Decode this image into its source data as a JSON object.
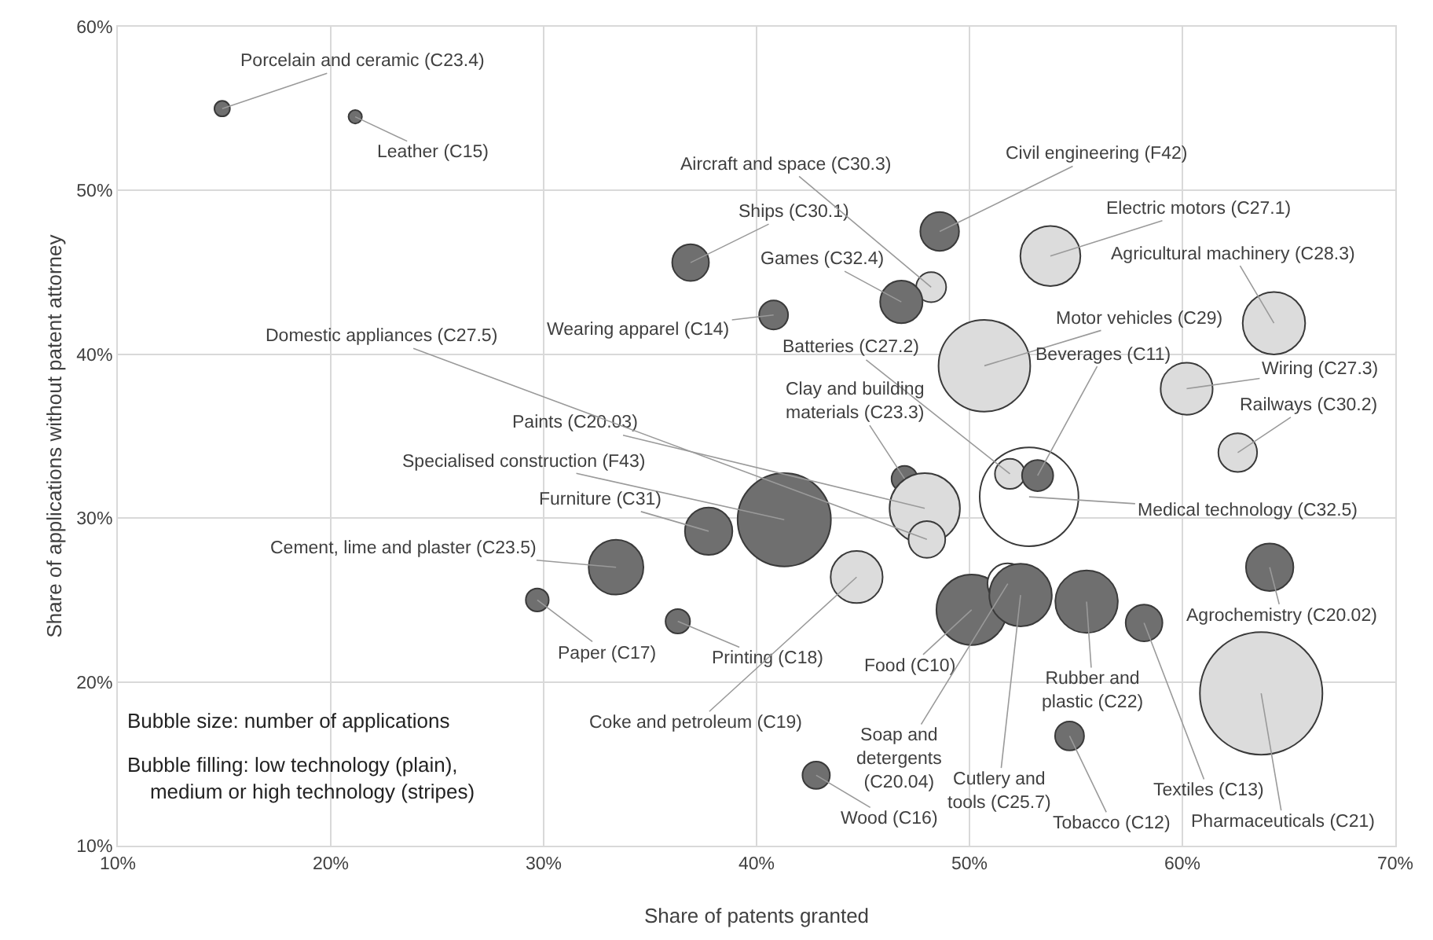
{
  "chart_data": {
    "type": "bubble",
    "xlabel": "Share of patents granted",
    "ylabel": "Share of applications without patent attorney",
    "x": [
      14.9,
      21.15,
      36.9,
      40.8,
      48.2,
      48.6,
      46.8,
      53.8,
      64.3,
      50.7,
      60.2,
      62.6,
      52.8,
      51.9,
      53.2,
      46.95,
      47.9,
      48.0,
      41.3,
      37.75,
      33.4,
      29.7,
      36.3,
      44.7,
      50.1,
      51.8,
      52.4,
      55.5,
      58.2,
      64.1,
      63.7,
      54.7,
      42.8
    ],
    "values": [
      55.0,
      54.5,
      45.6,
      42.4,
      44.1,
      47.5,
      43.2,
      46.0,
      41.9,
      39.3,
      37.9,
      34.0,
      31.3,
      32.7,
      32.6,
      32.4,
      30.6,
      28.7,
      29.9,
      29.2,
      27.0,
      25.0,
      23.7,
      26.4,
      24.4,
      26.0,
      25.3,
      24.9,
      23.6,
      27.0,
      19.3,
      16.7,
      14.3
    ],
    "sizes": [
      0.016,
      0.012,
      0.09,
      0.056,
      0.06,
      0.1,
      0.12,
      0.24,
      0.26,
      0.56,
      0.18,
      0.1,
      0.65,
      0.06,
      0.065,
      0.045,
      0.33,
      0.09,
      0.58,
      0.15,
      0.2,
      0.035,
      0.04,
      0.18,
      0.33,
      0.11,
      0.26,
      0.26,
      0.09,
      0.15,
      1,
      0.056,
      0.05
    ],
    "colors": [
      "#6f6f6f",
      "#6f6f6f",
      "#6f6f6f",
      "#6f6f6f",
      "#dcdcdc",
      "#6f6f6f",
      "#6f6f6f",
      "#dcdcdc",
      "#dcdcdc",
      "#dcdcdc",
      "#dcdcdc",
      "#dcdcdc",
      "#ffffff",
      "#dcdcdc",
      "#6f6f6f",
      "#6f6f6f",
      "#dcdcdc",
      "#dcdcdc",
      "#6f6f6f",
      "#6f6f6f",
      "#6f6f6f",
      "#6f6f6f",
      "#6f6f6f",
      "#dcdcdc",
      "#6f6f6f",
      "#ffffff",
      "#6f6f6f",
      "#6f6f6f",
      "#6f6f6f",
      "#6f6f6f",
      "#dcdcdc",
      "#6f6f6f",
      "#6f6f6f"
    ],
    "xlim": [
      10,
      70
    ],
    "xticks": [
      {
        "value": 10,
        "label": "10%"
      },
      {
        "value": 20,
        "label": "20%"
      },
      {
        "value": 30,
        "label": "30%"
      },
      {
        "value": 40,
        "label": "40%"
      },
      {
        "value": 50,
        "label": "50%"
      },
      {
        "value": 60,
        "label": "60%"
      },
      {
        "value": 70,
        "label": "70%"
      }
    ],
    "ylim": [
      10,
      60
    ],
    "yticks": [
      {
        "value": 10,
        "label": "10%"
      },
      {
        "value": 20,
        "label": "20%"
      },
      {
        "value": 30,
        "label": "30%"
      },
      {
        "value": 40,
        "label": "40%"
      },
      {
        "value": 50,
        "label": "50%"
      },
      {
        "value": 60,
        "label": "60%"
      }
    ],
    "grid": true,
    "marker": "circle",
    "annotations": [
      {
        "text": "Porcelain and ceramic (C23.4)",
        "x": 14.9,
        "y": 55.0
      },
      {
        "text": "Leather (C15)",
        "x": 21.15,
        "y": 54.5
      },
      {
        "text": "Ships (C30.1)",
        "x": 36.9,
        "y": 45.6
      },
      {
        "text": "Wearing apparel (C14)",
        "x": 40.8,
        "y": 42.4
      },
      {
        "text": "Aircraft and space (C30.3)",
        "x": 48.2,
        "y": 44.1
      },
      {
        "text": "Civil engineering (F42)",
        "x": 48.6,
        "y": 47.5
      },
      {
        "text": "Games (C32.4)",
        "x": 46.8,
        "y": 43.2
      },
      {
        "text": "Electric motors (C27.1)",
        "x": 53.8,
        "y": 46.0
      },
      {
        "text": "Agricultural machinery (C28.3)",
        "x": 64.3,
        "y": 41.9
      },
      {
        "text": "Motor vehicles (C29)",
        "x": 50.7,
        "y": 39.3
      },
      {
        "text": "Wiring (C27.3)",
        "x": 60.2,
        "y": 37.9
      },
      {
        "text": "Railways (C30.2)",
        "x": 62.6,
        "y": 34.0
      },
      {
        "text": "Medical technology (C32.5)",
        "x": 52.8,
        "y": 31.3
      },
      {
        "text": "Batteries (C27.2)",
        "x": 51.9,
        "y": 32.7
      },
      {
        "text": "Beverages (C11)",
        "x": 53.2,
        "y": 32.6
      },
      {
        "text": "Clay and building\nmaterials (C23.3)",
        "x": 46.95,
        "y": 32.4
      },
      {
        "text": "Paints (C20.03)",
        "x": 47.9,
        "y": 30.6
      },
      {
        "text": "Domestic appliances (C27.5)",
        "x": 48.0,
        "y": 28.7
      },
      {
        "text": "Specialised construction (F43)",
        "x": 41.3,
        "y": 29.9
      },
      {
        "text": "Furniture (C31)",
        "x": 37.75,
        "y": 29.2
      },
      {
        "text": "Cement, lime and plaster (C23.5)",
        "x": 33.4,
        "y": 27.0
      },
      {
        "text": "Paper (C17)",
        "x": 29.7,
        "y": 25.0
      },
      {
        "text": "Printing (C18)",
        "x": 36.3,
        "y": 23.7
      },
      {
        "text": "Coke and petroleum (C19)",
        "x": 44.7,
        "y": 26.4
      },
      {
        "text": "Food (C10)",
        "x": 50.1,
        "y": 24.4
      },
      {
        "text": "Soap and\ndetergents\n(C20.04)",
        "x": 51.8,
        "y": 26.0
      },
      {
        "text": "Cutlery and\ntools (C25.7)",
        "x": 52.4,
        "y": 25.3
      },
      {
        "text": "Rubber and\nplastic (C22)",
        "x": 55.5,
        "y": 24.9
      },
      {
        "text": "Textiles (C13)",
        "x": 58.2,
        "y": 23.6
      },
      {
        "text": "Agrochemistry (C20.02)",
        "x": 64.1,
        "y": 27.0
      },
      {
        "text": "Pharmaceuticals (C21)",
        "x": 63.7,
        "y": 19.3
      },
      {
        "text": "Tobacco (C12)",
        "x": 54.7,
        "y": 16.7
      },
      {
        "text": "Wood (C16)",
        "x": 42.8,
        "y": 14.3
      },
      "Bubble size: number of applications",
      "Bubble filling: low technology (plain),\n   medium or high technology (stripes)"
    ]
  }
}
